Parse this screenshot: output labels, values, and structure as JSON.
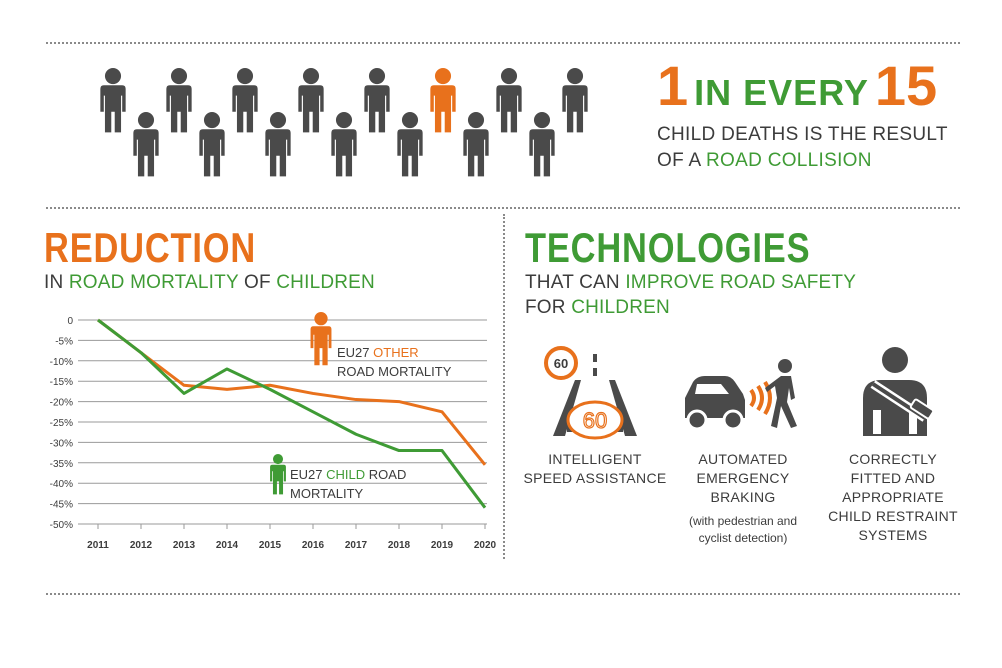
{
  "stat": {
    "number_a": "1",
    "middle": "IN EVERY",
    "number_b": "15",
    "line1": "CHILD DEATHS IS THE RESULT",
    "line2_prefix": "OF A ",
    "line2_highlight": "ROAD COLLISION"
  },
  "people_icons": {
    "total": 15,
    "highlighted_index": 10
  },
  "reduction": {
    "title": "REDUCTION",
    "sub_in": "IN ",
    "sub_road_mortality": "ROAD MORTALITY",
    "sub_of": " OF ",
    "sub_children": "CHILDREN"
  },
  "technologies": {
    "title": "TECHNOLOGIES",
    "sub_prefix": "THAT CAN ",
    "sub_highlight": "IMPROVE ROAD SAFETY",
    "sub2_prefix": "FOR ",
    "sub2_highlight": "CHILDREN",
    "items": [
      {
        "icon": "speed-assistance-icon",
        "sign_value": "60",
        "dash_value": "60",
        "label_lines": [
          "INTELLIGENT",
          "SPEED ASSISTANCE"
        ],
        "note_lines": []
      },
      {
        "icon": "emergency-braking-icon",
        "label_lines": [
          "AUTOMATED",
          "EMERGENCY",
          "BRAKING"
        ],
        "note_lines": [
          "(with pedestrian and",
          "cyclist detection)"
        ]
      },
      {
        "icon": "child-restraint-icon",
        "label_lines": [
          "CORRECTLY",
          "FITTED AND",
          "APPROPRIATE",
          "CHILD RESTRAINT",
          "SYSTEMS"
        ],
        "note_lines": []
      }
    ]
  },
  "colors": {
    "orange": "#e8711c",
    "green": "#3f9b35",
    "gray": "#4a4a4a",
    "grid": "#9a9a9a"
  },
  "chart_data": {
    "type": "line",
    "title": "",
    "xlabel": "",
    "ylabel": "",
    "x": [
      "2011",
      "2012",
      "2013",
      "2014",
      "2015",
      "2016",
      "2017",
      "2018",
      "2019",
      "2020"
    ],
    "y_ticks": [
      "0",
      "-5%",
      "-10%",
      "-15%",
      "-20%",
      "-25%",
      "-30%",
      "-35%",
      "-40%",
      "-45%",
      "-50%"
    ],
    "ylim": [
      -50,
      0
    ],
    "grid": true,
    "series": [
      {
        "name_prefix": "EU27 ",
        "name_highlight": "OTHER",
        "name_suffix": "ROAD MORTALITY",
        "color": "#e8711c",
        "values": [
          0,
          -8,
          -16,
          -17,
          -16,
          -18,
          -19.5,
          -20,
          -22.5,
          -35.5
        ]
      },
      {
        "name_prefix": "EU27 ",
        "name_highlight": "CHILD",
        "name_suffix_1": " ROAD",
        "name_suffix_2": "MORTALITY",
        "color": "#3f9b35",
        "values": [
          0,
          -8,
          -18,
          -12,
          -17,
          -22.5,
          -28,
          -32,
          -32,
          -46
        ]
      }
    ]
  }
}
